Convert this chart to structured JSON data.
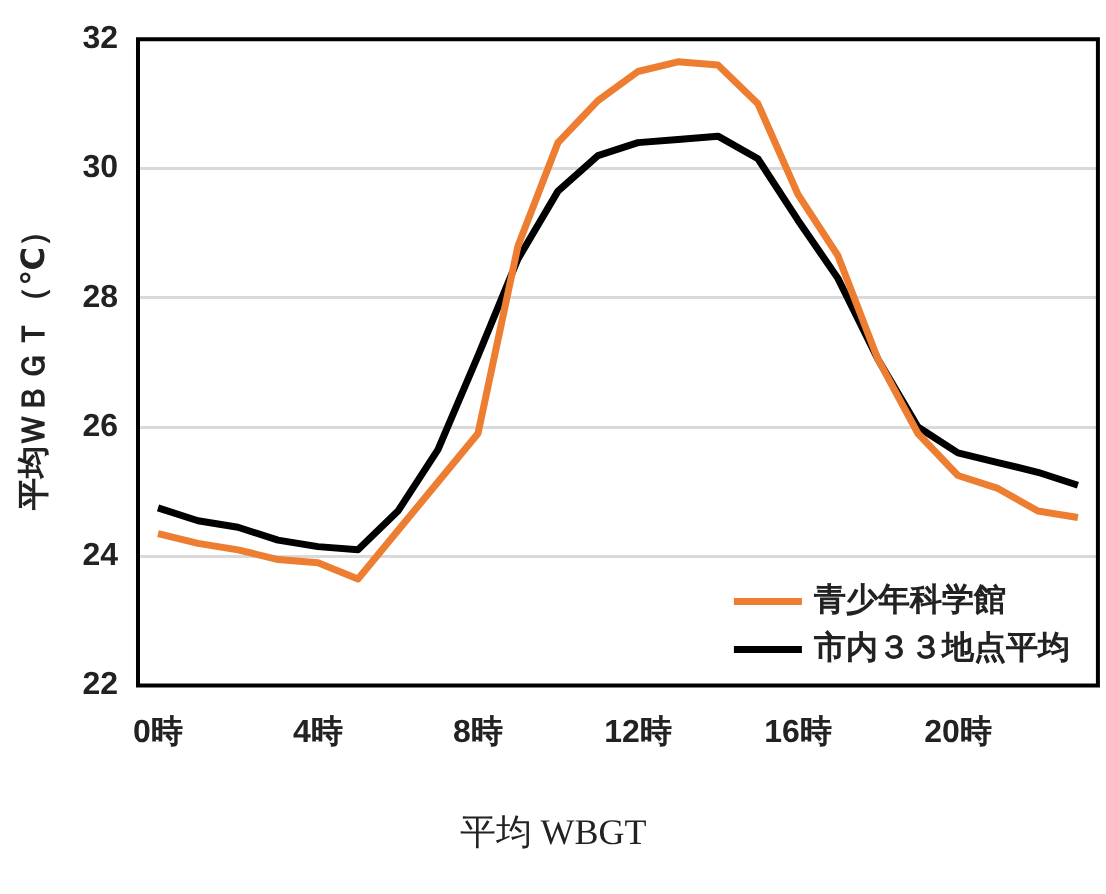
{
  "chart_data": {
    "type": "line",
    "ylabel": "平均ＷＢＧＴ（℃）",
    "annotations": [
      "平均 WBGT"
    ],
    "categories": [
      "0時",
      null,
      null,
      null,
      "4時",
      null,
      null,
      null,
      "8時",
      null,
      null,
      null,
      "12時",
      null,
      null,
      null,
      "16時",
      null,
      null,
      null,
      "20時",
      null,
      null,
      null
    ],
    "series": [
      {
        "name": "青少年科学館",
        "color": "#ed7d31",
        "values": [
          24.35,
          24.2,
          24.1,
          23.95,
          23.9,
          23.65,
          24.4,
          25.15,
          25.9,
          28.8,
          30.4,
          31.05,
          31.5,
          31.65,
          31.6,
          31.0,
          29.6,
          28.65,
          27.05,
          25.9,
          25.25,
          25.05,
          24.7,
          24.6
        ]
      },
      {
        "name": "市内３３地点平均",
        "color": "#000000",
        "values": [
          24.75,
          24.55,
          24.45,
          24.25,
          24.15,
          24.1,
          24.7,
          25.65,
          27.1,
          28.6,
          29.65,
          30.2,
          30.4,
          30.45,
          30.5,
          30.15,
          29.2,
          28.3,
          27.05,
          26.0,
          25.6,
          25.45,
          25.3,
          25.1
        ]
      }
    ],
    "ylim": [
      22,
      32
    ],
    "yticks": [
      22,
      24,
      26,
      28,
      30,
      32
    ],
    "grid": "y",
    "legend": "bottom right",
    "marker": "none",
    "line_style": "solid"
  }
}
